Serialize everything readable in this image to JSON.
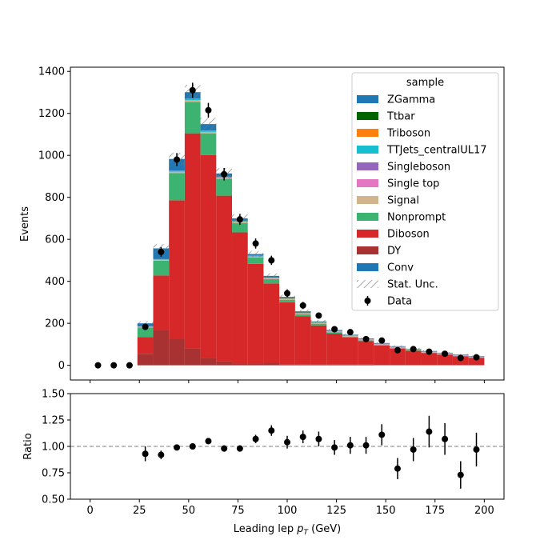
{
  "chart_data": [
    {
      "type": "bar",
      "ylabel": "Events",
      "xlim": [
        -10,
        210
      ],
      "ylim": [
        -70,
        1420
      ],
      "yticks": [
        0,
        200,
        400,
        600,
        800,
        1000,
        1200,
        1400
      ],
      "bin_edges": [
        24,
        32,
        40,
        48,
        56,
        64,
        72,
        80,
        88,
        96,
        104,
        112,
        120,
        128,
        136,
        144,
        152,
        160,
        168,
        176,
        184,
        192,
        200
      ],
      "stack_series": [
        {
          "name": "DY",
          "color": "#a83232",
          "values": [
            55,
            168,
            128,
            82,
            35,
            18,
            8,
            8,
            12,
            5,
            3,
            5,
            3,
            5,
            3,
            2,
            2,
            1,
            1,
            1,
            1,
            1
          ]
        },
        {
          "name": "Diboson",
          "color": "#d62828",
          "values": [
            80,
            260,
            658,
            1023,
            967,
            790,
            625,
            475,
            378,
            295,
            230,
            185,
            148,
            128,
            112,
            92,
            78,
            68,
            58,
            50,
            42,
            35
          ]
        },
        {
          "name": "Nonprompt",
          "color": "#3cb371",
          "values": [
            45,
            70,
            130,
            150,
            103,
            80,
            45,
            30,
            20,
            12,
            10,
            8,
            6,
            4,
            4,
            3,
            2,
            2,
            1,
            1,
            1,
            1
          ]
        },
        {
          "name": "Signal",
          "color": "#d2b48c",
          "values": [
            2,
            3,
            5,
            6,
            5,
            4,
            4,
            4,
            3,
            3,
            3,
            3,
            3,
            2,
            2,
            2,
            2,
            2,
            2,
            2,
            1,
            1
          ]
        },
        {
          "name": "Single top",
          "color": "#e377c2",
          "values": [
            1,
            1,
            1,
            1,
            1,
            1,
            1,
            1,
            1,
            1,
            1,
            1,
            1,
            1,
            1,
            1,
            1,
            1,
            1,
            1,
            1,
            1
          ]
        },
        {
          "name": "Singleboson",
          "color": "#9467bd",
          "values": [
            1,
            1,
            1,
            1,
            1,
            1,
            1,
            1,
            1,
            1,
            1,
            1,
            1,
            1,
            1,
            1,
            1,
            1,
            1,
            1,
            1,
            1
          ]
        },
        {
          "name": "TTJets_centralUL17",
          "color": "#17becf",
          "values": [
            1,
            2,
            3,
            5,
            4,
            3,
            3,
            2,
            2,
            2,
            2,
            1,
            1,
            1,
            1,
            1,
            1,
            1,
            1,
            1,
            1,
            1
          ]
        },
        {
          "name": "Triboson",
          "color": "#ff7f0e",
          "values": [
            1,
            1,
            1,
            2,
            2,
            1,
            1,
            1,
            1,
            1,
            1,
            1,
            1,
            1,
            1,
            1,
            1,
            1,
            1,
            1,
            1,
            1
          ]
        },
        {
          "name": "Ttbar",
          "color": "#006400",
          "values": [
            1,
            1,
            1,
            1,
            1,
            1,
            1,
            1,
            1,
            1,
            1,
            1,
            1,
            1,
            1,
            1,
            1,
            1,
            1,
            1,
            1,
            1
          ]
        },
        {
          "name": "ZGamma",
          "color": "#1f77b4",
          "values": [
            13,
            50,
            55,
            30,
            30,
            15,
            11,
            7,
            7,
            5,
            5,
            3,
            3,
            2,
            2,
            2,
            2,
            1,
            1,
            1,
            1,
            1
          ]
        }
      ],
      "stat_unc": [
        10,
        20,
        30,
        35,
        30,
        25,
        20,
        15,
        12,
        10,
        8,
        7,
        6,
        5,
        5,
        4,
        4,
        4,
        3,
        3,
        3,
        3
      ],
      "data_points": {
        "name": "Data",
        "x": [
          4,
          12,
          20,
          28,
          36,
          44,
          52,
          60,
          68,
          76,
          84,
          92,
          100,
          108,
          116,
          124,
          132,
          140,
          148,
          156,
          164,
          172,
          180,
          188,
          196
        ],
        "y": [
          0,
          0,
          0,
          183,
          540,
          980,
          1310,
          1215,
          910,
          695,
          580,
          500,
          343,
          285,
          237,
          172,
          158,
          125,
          118,
          72,
          77,
          65,
          55,
          35,
          38
        ],
        "err": [
          0,
          0,
          0,
          14,
          23,
          31,
          36,
          35,
          30,
          26,
          24,
          22,
          19,
          17,
          15,
          13,
          13,
          11,
          11,
          8,
          9,
          8,
          7,
          6,
          6
        ]
      },
      "legend": {
        "title": "sample",
        "placement": "top-right",
        "entries": [
          {
            "label": "ZGamma",
            "kind": "patch",
            "color": "#1f77b4"
          },
          {
            "label": "Ttbar",
            "kind": "patch",
            "color": "#006400"
          },
          {
            "label": "Triboson",
            "kind": "patch",
            "color": "#ff7f0e"
          },
          {
            "label": "TTJets_centralUL17",
            "kind": "patch",
            "color": "#17becf"
          },
          {
            "label": "Singleboson",
            "kind": "patch",
            "color": "#9467bd"
          },
          {
            "label": "Single top",
            "kind": "patch",
            "color": "#e377c2"
          },
          {
            "label": "Signal",
            "kind": "patch",
            "color": "#d2b48c"
          },
          {
            "label": "Nonprompt",
            "kind": "patch",
            "color": "#3cb371"
          },
          {
            "label": "Diboson",
            "kind": "patch",
            "color": "#d62828"
          },
          {
            "label": "DY",
            "kind": "patch",
            "color": "#a83232"
          },
          {
            "label": "Conv",
            "kind": "patch",
            "color": "#1f77b4"
          },
          {
            "label": "Stat. Unc.",
            "kind": "hatch",
            "color": "#777777"
          },
          {
            "label": "Data",
            "kind": "marker",
            "color": "#000000"
          }
        ]
      }
    },
    {
      "type": "scatter",
      "ylabel": "Ratio",
      "xlabel_main": "Leading lep ",
      "xlabel_sym": "p",
      "xlabel_sub": "T",
      "xlabel_unit": " (GeV)",
      "xlim": [
        -10,
        210
      ],
      "ylim": [
        0.5,
        1.5
      ],
      "xticks": [
        0,
        25,
        50,
        75,
        100,
        125,
        150,
        175,
        200
      ],
      "yticks": [
        "0.50",
        "0.75",
        "1.00",
        "1.25",
        "1.50"
      ],
      "reference_line": 1.0,
      "x": [
        28,
        36,
        44,
        52,
        60,
        68,
        76,
        84,
        92,
        100,
        108,
        116,
        124,
        132,
        140,
        148,
        156,
        164,
        172,
        180,
        188,
        196
      ],
      "y": [
        0.93,
        0.92,
        0.99,
        1.0,
        1.05,
        0.98,
        0.98,
        1.07,
        1.15,
        1.04,
        1.09,
        1.07,
        0.99,
        1.01,
        1.01,
        1.11,
        0.79,
        0.97,
        1.14,
        1.07,
        0.73,
        0.97
      ],
      "err": [
        0.07,
        0.04,
        0.02,
        0.02,
        0.02,
        0.03,
        0.03,
        0.04,
        0.05,
        0.06,
        0.06,
        0.07,
        0.07,
        0.08,
        0.08,
        0.1,
        0.1,
        0.11,
        0.15,
        0.15,
        0.13,
        0.16
      ]
    }
  ]
}
